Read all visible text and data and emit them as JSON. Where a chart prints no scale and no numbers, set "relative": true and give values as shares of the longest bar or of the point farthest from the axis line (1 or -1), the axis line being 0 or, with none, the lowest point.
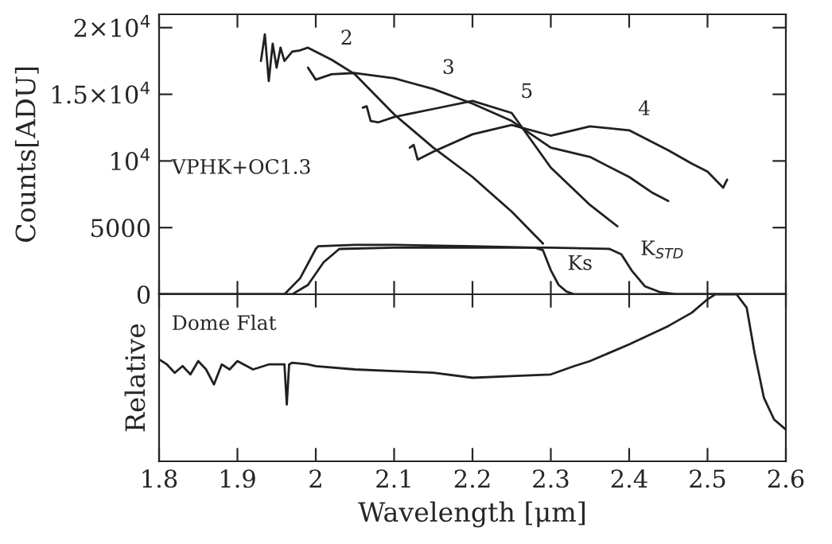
{
  "chart_data": [
    {
      "type": "line",
      "ylabel": "Counts[ADU]",
      "xlim": [
        1.8,
        2.6
      ],
      "xticks": [
        1.8,
        1.9,
        2,
        2.1,
        2.2,
        2.3,
        2.4,
        2.5,
        2.6
      ],
      "ylim": [
        0,
        21000
      ],
      "yticks": [
        0,
        5000,
        {
          "value": 10000,
          "label": "10$^{4}$"
        },
        {
          "value": 15000,
          "label": "1.5×10$^{4}$"
        },
        {
          "value": 20000,
          "label": "2×10$^{4}$"
        }
      ],
      "tick_labels": "y",
      "series": [
        {
          "color": "#231f20",
          "x": [
            1.93,
            1.935,
            1.94,
            1.945,
            1.95,
            1.955,
            1.96,
            1.97,
            1.98,
            1.99,
            2.0,
            2.02,
            2.05,
            2.1,
            2.15,
            2.2,
            2.25,
            2.29
          ],
          "values": [
            17500,
            19500,
            16000,
            18800,
            17000,
            18500,
            17500,
            18200,
            18300,
            18500,
            18200,
            17600,
            16500,
            13500,
            11000,
            8800,
            6200,
            3800
          ]
        },
        {
          "color": "#231f20",
          "x": [
            1.99,
            2.0,
            2.02,
            2.05,
            2.1,
            2.15,
            2.2,
            2.25,
            2.3,
            2.35,
            2.4,
            2.43,
            2.45
          ],
          "values": [
            17000,
            16100,
            16500,
            16600,
            16200,
            15400,
            14300,
            13000,
            11000,
            10300,
            8800,
            7600,
            7000
          ]
        },
        {
          "color": "#231f20",
          "x": [
            2.12,
            2.125,
            2.13,
            2.15,
            2.2,
            2.25,
            2.3,
            2.35,
            2.4,
            2.45,
            2.48,
            2.5,
            2.52,
            2.525
          ],
          "values": [
            11000,
            11200,
            10100,
            10700,
            12000,
            12700,
            11900,
            12600,
            12300,
            10800,
            9800,
            9200,
            8000,
            8600
          ]
        },
        {
          "color": "#231f20",
          "x": [
            2.06,
            2.065,
            2.07,
            2.08,
            2.1,
            2.15,
            2.2,
            2.25,
            2.3,
            2.35,
            2.385
          ],
          "values": [
            14000,
            14100,
            13000,
            12900,
            13300,
            13900,
            14500,
            13600,
            9500,
            6700,
            5100
          ]
        },
        {
          "color": "#231f20",
          "x": [
            1.8,
            1.96,
            1.98,
            2.0,
            2.003,
            2.05,
            2.1,
            2.2,
            2.28,
            2.29,
            2.3,
            2.31,
            2.32,
            2.33,
            2.6
          ],
          "values": [
            0,
            0,
            1200,
            3400,
            3600,
            3700,
            3700,
            3600,
            3500,
            3300,
            1800,
            700,
            200,
            0,
            0
          ]
        },
        {
          "color": "#231f20",
          "x": [
            1.8,
            1.97,
            1.99,
            2.01,
            2.03,
            2.1,
            2.2,
            2.3,
            2.375,
            2.39,
            2.403,
            2.42,
            2.44,
            2.46,
            2.6
          ],
          "values": [
            0,
            0,
            700,
            2400,
            3400,
            3500,
            3500,
            3500,
            3400,
            3000,
            1800,
            600,
            150,
            0,
            0
          ]
        }
      ],
      "annotations": [
        "VPHK+OC1.3",
        {
          "text": "2",
          "x": 2.02,
          "y": 17600
        },
        {
          "text": "3",
          "x": 2.15,
          "y": 15400
        },
        {
          "text": "5",
          "x": 2.25,
          "y": 13600
        },
        {
          "text": "4",
          "x": 2.4,
          "y": 12300
        },
        {
          "text": "Ks",
          "x": 2.31,
          "y": 700
        },
        {
          "text": "K$_{STD}$",
          "x": 2.403,
          "y": 1800
        }
      ]
    },
    {
      "type": "line",
      "xlabel": "Wavelength [μm]",
      "ylabel": "Relative",
      "xlim": [
        1.8,
        2.6
      ],
      "xticks": [
        1.8,
        1.9,
        2,
        2.1,
        2.2,
        2.3,
        2.4,
        2.5,
        2.6
      ],
      "relative": true,
      "tick_labels": "x",
      "series": [
        {
          "color": "#231f20",
          "x": [
            1.8,
            1.81,
            1.82,
            1.83,
            1.84,
            1.85,
            1.86,
            1.87,
            1.88,
            1.89,
            1.9,
            1.92,
            1.94,
            1.96,
            1.963,
            1.966,
            1.97,
            1.99,
            2.0,
            2.05,
            2.1,
            2.15,
            2.2,
            2.25,
            2.3,
            2.33,
            2.35,
            2.4,
            2.45,
            2.48,
            2.5,
            2.51,
            2.537,
            2.55,
            2.56,
            2.572,
            2.585,
            2.6
          ],
          "values": [
            0.61,
            0.58,
            0.53,
            0.57,
            0.52,
            0.6,
            0.55,
            0.46,
            0.58,
            0.55,
            0.6,
            0.55,
            0.58,
            0.58,
            0.34,
            0.58,
            0.59,
            0.58,
            0.57,
            0.55,
            0.54,
            0.53,
            0.5,
            0.51,
            0.52,
            0.57,
            0.6,
            0.7,
            0.81,
            0.89,
            0.97,
            1.0,
            1.0,
            0.92,
            0.65,
            0.38,
            0.25,
            0.19
          ]
        }
      ],
      "annotations": [
        "Dome Flat"
      ]
    }
  ]
}
